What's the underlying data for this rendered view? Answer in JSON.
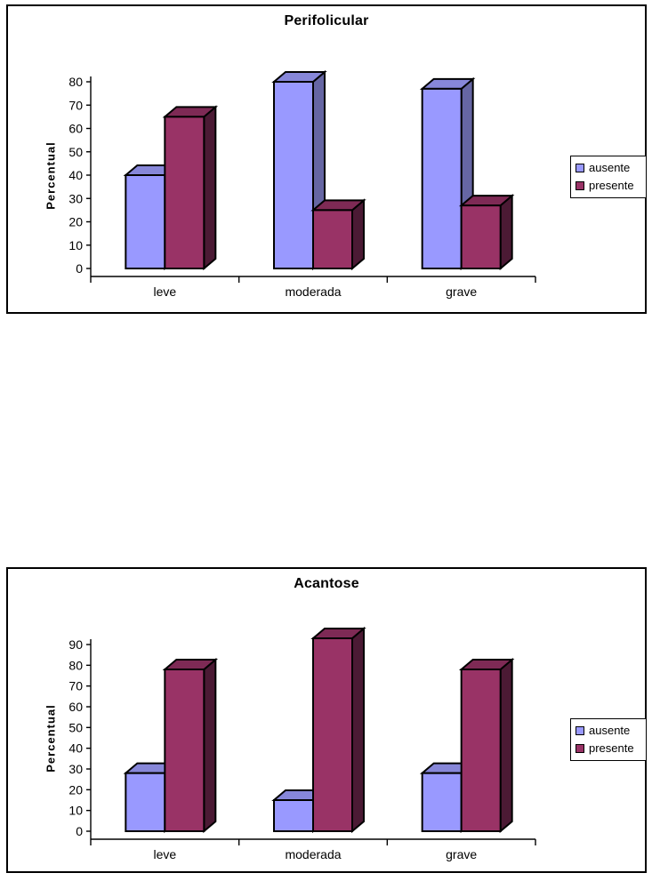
{
  "page": {
    "background": "#ffffff"
  },
  "chart_data": [
    {
      "type": "bar",
      "variant": "3d-effect-clustered",
      "title": "Perifolicular",
      "xlabel": "",
      "ylabel": "Percentual",
      "categories": [
        "leve",
        "moderada",
        "grave"
      ],
      "series": [
        {
          "name": "ausente",
          "values": [
            40,
            80,
            77
          ],
          "color": "#9999FF",
          "color_top": "#8787D9",
          "color_side": "#6666A3"
        },
        {
          "name": "presente",
          "values": [
            65,
            25,
            27
          ],
          "color": "#993366",
          "color_top": "#7E2A55",
          "color_side": "#4B1A34"
        }
      ],
      "ylim": [
        0,
        80
      ],
      "ytick_step": 10,
      "grid": false,
      "legend_position": "right",
      "outline_color": "#000000"
    },
    {
      "type": "bar",
      "variant": "3d-effect-clustered",
      "title": "Acantose",
      "xlabel": "",
      "ylabel": "Percentual",
      "categories": [
        "leve",
        "moderada",
        "grave"
      ],
      "series": [
        {
          "name": "ausente",
          "values": [
            28,
            15,
            28
          ],
          "color": "#9999FF",
          "color_top": "#8787D9",
          "color_side": "#6666A3"
        },
        {
          "name": "presente",
          "values": [
            78,
            93,
            78
          ],
          "color": "#993366",
          "color_top": "#7E2A55",
          "color_side": "#4B1A34"
        }
      ],
      "ylim": [
        0,
        90
      ],
      "ytick_step": 10,
      "grid": false,
      "legend_position": "right",
      "outline_color": "#000000"
    }
  ]
}
